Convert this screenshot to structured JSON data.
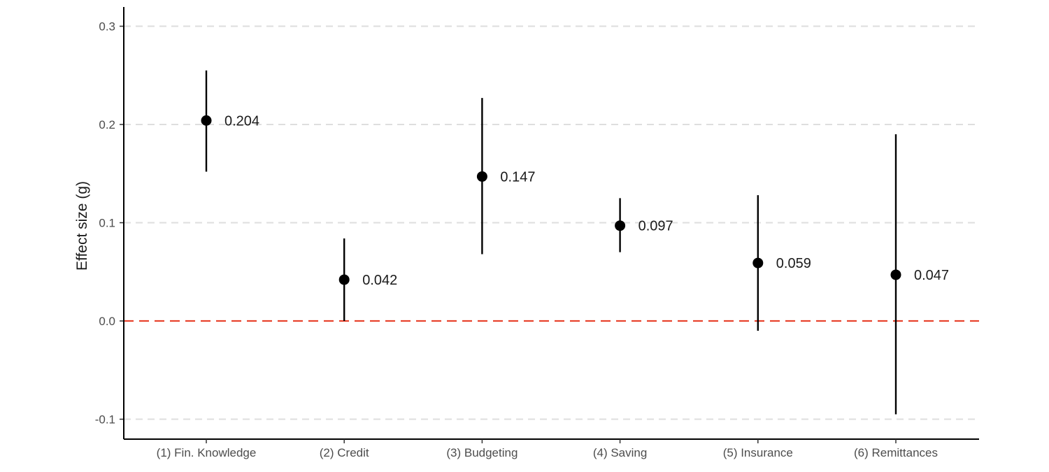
{
  "chart_data": {
    "type": "scatter",
    "subtype": "point-with-error-bars",
    "title": "",
    "xlabel": "",
    "ylabel": "Effect size (g)",
    "ylim": [
      -0.12,
      0.32
    ],
    "yticks": [
      -0.1,
      0.0,
      0.1,
      0.2,
      0.3
    ],
    "ytick_labels": [
      "-0.1",
      "0.0",
      "0.1",
      "0.2",
      "0.3"
    ],
    "grid": "horizontal dashed",
    "reference_line": {
      "y": 0.0,
      "style": "dashed",
      "color": "#e8432e"
    },
    "categories": [
      "(1) Fin. Knowledge",
      "(2) Credit",
      "(3) Budgeting",
      "(4) Saving",
      "(5) Insurance",
      "(6) Remittances"
    ],
    "values": [
      0.204,
      0.042,
      0.147,
      0.097,
      0.059,
      0.047
    ],
    "value_labels": [
      "0.204",
      "0.042",
      "0.147",
      "0.097",
      "0.059",
      "0.047"
    ],
    "ci_lower": [
      0.152,
      0.0,
      0.068,
      0.07,
      -0.01,
      -0.095
    ],
    "ci_upper": [
      0.255,
      0.084,
      0.227,
      0.125,
      0.128,
      0.19
    ],
    "colors": {
      "point": "#000000",
      "errorbar": "#000000",
      "grid": "#dedede",
      "axis": "#000000",
      "reference": "#e8432e"
    }
  }
}
